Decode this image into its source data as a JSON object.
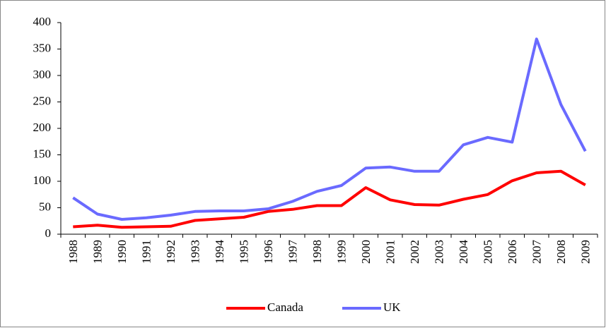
{
  "chart_data": {
    "type": "line",
    "categories": [
      "1988",
      "1989",
      "1990",
      "1991",
      "1992",
      "1993",
      "1994",
      "1995",
      "1996",
      "1997",
      "1998",
      "1999",
      "2000",
      "2001",
      "2002",
      "2003",
      "2004",
      "2005",
      "2006",
      "2007",
      "2008",
      "2009"
    ],
    "series": [
      {
        "name": "Canada",
        "color": "#ff0000",
        "values": [
          14,
          17,
          13,
          14,
          15,
          26,
          29,
          32,
          43,
          47,
          54,
          54,
          88,
          65,
          56,
          55,
          66,
          75,
          101,
          116,
          119,
          93
        ]
      },
      {
        "name": "UK",
        "color": "#6a6aff",
        "values": [
          69,
          38,
          28,
          31,
          36,
          43,
          44,
          44,
          48,
          62,
          81,
          92,
          125,
          127,
          119,
          119,
          169,
          183,
          174,
          369,
          245,
          157
        ]
      }
    ],
    "ylim": [
      0,
      400
    ],
    "yticks": [
      0,
      50,
      100,
      150,
      200,
      250,
      300,
      350,
      400
    ],
    "grid": false,
    "legend": "bottom"
  }
}
